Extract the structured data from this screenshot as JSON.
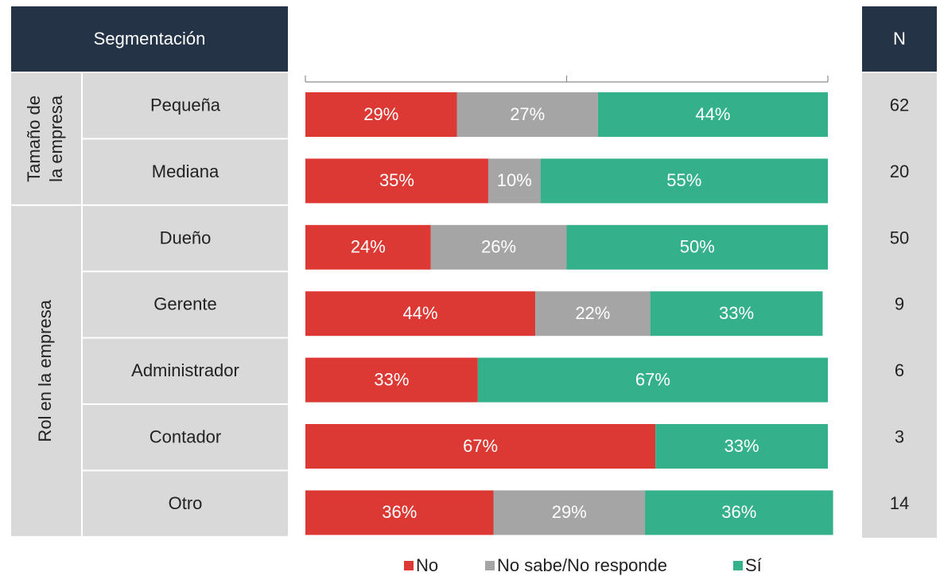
{
  "chart_data": {
    "type": "stacked_bar_h",
    "row_header": "Segmentación",
    "n_header": "N",
    "groups": [
      [
        "Tamaño de",
        "la empresa"
      ],
      [
        "Rol en la empresa"
      ]
    ],
    "categories": [
      "Pequeña",
      "Mediana",
      "Dueño",
      "Gerente",
      "Administrador",
      "Contador",
      "Otro"
    ],
    "n": [
      62,
      20,
      50,
      9,
      6,
      3,
      14
    ],
    "xlim": [
      0,
      100
    ],
    "xticks": [
      0,
      50,
      100
    ],
    "series": [
      {
        "name": "No",
        "color": "#dc3934",
        "values": [
          29,
          35,
          24,
          44,
          33,
          67,
          36
        ],
        "value_labels": [
          "29%",
          "35%",
          "24%",
          "44%",
          "33%",
          "67%",
          "36%"
        ]
      },
      {
        "name": "No sabe/No responde",
        "color": "#a5a5a5",
        "values": [
          27,
          10,
          26,
          22,
          null,
          null,
          29
        ],
        "value_labels": [
          "27%",
          "10%",
          "26%",
          "22%",
          null,
          null,
          "29%"
        ]
      },
      {
        "name": "Sí",
        "color": "#34b08a",
        "values": [
          44,
          55,
          50,
          33,
          67,
          33,
          36
        ],
        "value_labels": [
          "44%",
          "55%",
          "50%",
          "33%",
          "67%",
          "33%",
          "36%"
        ]
      }
    ]
  }
}
